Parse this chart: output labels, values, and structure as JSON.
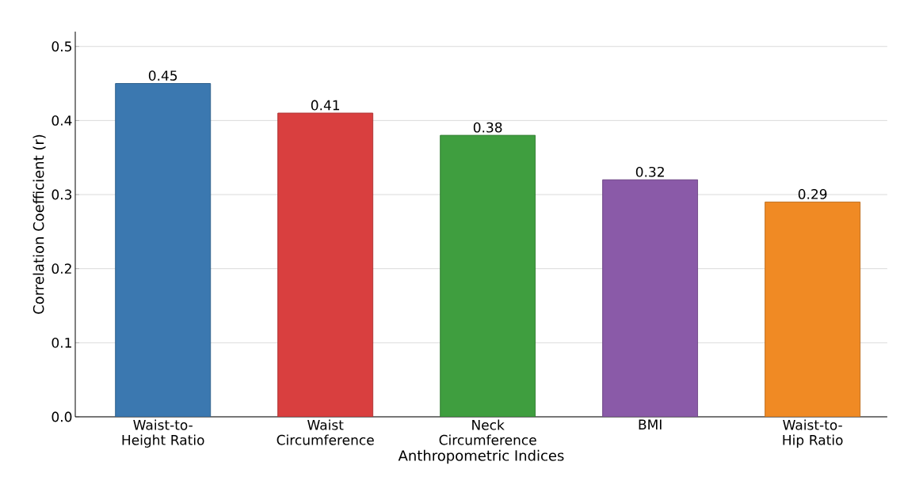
{
  "chart_data": {
    "type": "bar",
    "xlabel": "Anthropometric Indices",
    "ylabel": "Correlation Coefficient (r)",
    "categories": [
      "Waist-to-Height Ratio",
      "Waist Circumference",
      "Neck Circumference",
      "BMI",
      "Waist-to-Hip Ratio"
    ],
    "values": [
      0.45,
      0.41,
      0.38,
      0.32,
      0.29
    ],
    "colors": [
      "#3b78b0",
      "#d93f3f",
      "#3f9e3f",
      "#8a5aa8",
      "#f08a24"
    ],
    "ylim": [
      0,
      0.52
    ],
    "yticks": [
      {
        "value": 0,
        "label": "0.0"
      },
      {
        "value": 0.1,
        "label": "0.1"
      },
      {
        "value": 0.2,
        "label": "0.2"
      },
      {
        "value": 0.3,
        "label": "0.3"
      },
      {
        "value": 0.4,
        "label": "0.4"
      },
      {
        "value": 0.5,
        "label": "0.5"
      }
    ],
    "grid": "y",
    "data_labels": true
  }
}
